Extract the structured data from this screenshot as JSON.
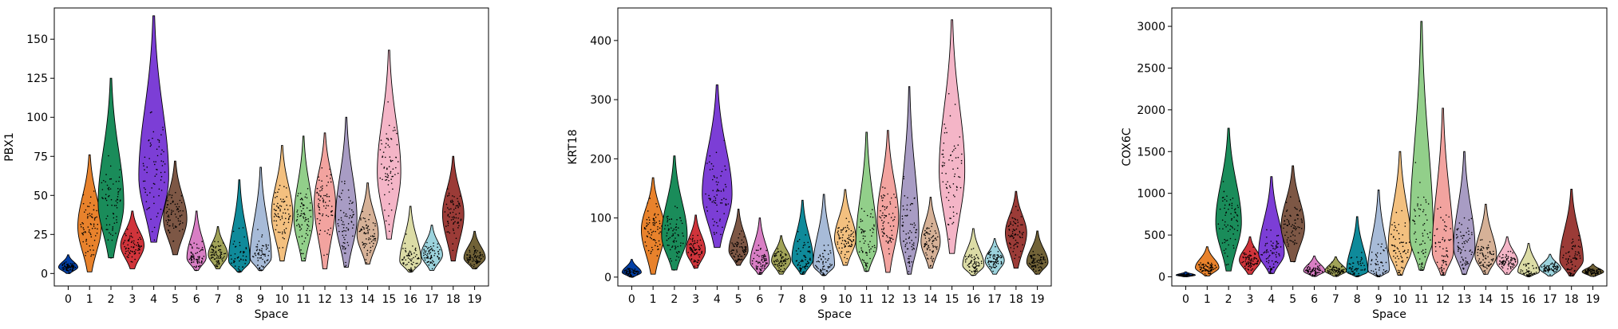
{
  "figure": {
    "palette": [
      "#023fa5",
      "#e8822c",
      "#1a8c5a",
      "#d0343b",
      "#7c3ed6",
      "#7d5745",
      "#d87ec4",
      "#a1a358",
      "#0f8a9a",
      "#a7bbd8",
      "#f3c07f",
      "#92cf8a",
      "#f2a39f",
      "#a89cc4",
      "#d6b197",
      "#f4b5c7",
      "#dcdca6",
      "#9cd3dd",
      "#9b3b37",
      "#716237"
    ]
  },
  "chart_data": [
    {
      "type": "violin",
      "xlabel": "Space",
      "ylabel": "PBX1",
      "categories": [
        "0",
        "1",
        "2",
        "3",
        "4",
        "5",
        "6",
        "7",
        "8",
        "9",
        "10",
        "11",
        "12",
        "13",
        "14",
        "15",
        "16",
        "17",
        "18",
        "19"
      ],
      "ylim": [
        -8,
        170
      ],
      "yticks": [
        0,
        25,
        50,
        75,
        100,
        125,
        150
      ],
      "series": [
        {
          "category": "0",
          "min": 0,
          "max": 12,
          "median": 4,
          "width": 0.45
        },
        {
          "category": "1",
          "min": 1,
          "max": 76,
          "median": 30,
          "width": 0.55
        },
        {
          "category": "2",
          "min": 10,
          "max": 125,
          "median": 45,
          "width": 0.6
        },
        {
          "category": "3",
          "min": 3,
          "max": 40,
          "median": 18,
          "width": 0.55
        },
        {
          "category": "4",
          "min": 20,
          "max": 165,
          "median": 62,
          "width": 0.7
        },
        {
          "category": "5",
          "min": 12,
          "max": 72,
          "median": 35,
          "width": 0.55
        },
        {
          "category": "6",
          "min": 2,
          "max": 40,
          "median": 10,
          "width": 0.45
        },
        {
          "category": "7",
          "min": 3,
          "max": 30,
          "median": 12,
          "width": 0.45
        },
        {
          "category": "8",
          "min": 1,
          "max": 60,
          "median": 8,
          "width": 0.5
        },
        {
          "category": "9",
          "min": 2,
          "max": 68,
          "median": 10,
          "width": 0.5
        },
        {
          "category": "10",
          "min": 8,
          "max": 82,
          "median": 38,
          "width": 0.5
        },
        {
          "category": "11",
          "min": 8,
          "max": 88,
          "median": 35,
          "width": 0.45
        },
        {
          "category": "12",
          "min": 3,
          "max": 90,
          "median": 45,
          "width": 0.5
        },
        {
          "category": "13",
          "min": 4,
          "max": 100,
          "median": 35,
          "width": 0.5
        },
        {
          "category": "14",
          "min": 6,
          "max": 58,
          "median": 25,
          "width": 0.5
        },
        {
          "category": "15",
          "min": 22,
          "max": 143,
          "median": 65,
          "width": 0.55
        },
        {
          "category": "16",
          "min": 1,
          "max": 43,
          "median": 8,
          "width": 0.5
        },
        {
          "category": "17",
          "min": 2,
          "max": 31,
          "median": 12,
          "width": 0.5
        },
        {
          "category": "18",
          "min": 8,
          "max": 75,
          "median": 38,
          "width": 0.5
        },
        {
          "category": "19",
          "min": 3,
          "max": 27,
          "median": 10,
          "width": 0.5
        }
      ]
    },
    {
      "type": "violin",
      "xlabel": "Space",
      "ylabel": "KRT18",
      "categories": [
        "0",
        "1",
        "2",
        "3",
        "4",
        "5",
        "6",
        "7",
        "8",
        "9",
        "10",
        "11",
        "12",
        "13",
        "14",
        "15",
        "16",
        "17",
        "18",
        "19"
      ],
      "ylim": [
        -15,
        455
      ],
      "yticks": [
        0,
        100,
        200,
        300,
        400
      ],
      "series": [
        {
          "category": "0",
          "min": 0,
          "max": 30,
          "median": 8,
          "width": 0.45
        },
        {
          "category": "1",
          "min": 5,
          "max": 168,
          "median": 80,
          "width": 0.55
        },
        {
          "category": "2",
          "min": 12,
          "max": 205,
          "median": 70,
          "width": 0.6
        },
        {
          "category": "3",
          "min": 15,
          "max": 105,
          "median": 45,
          "width": 0.45
        },
        {
          "category": "4",
          "min": 50,
          "max": 325,
          "median": 140,
          "width": 0.7
        },
        {
          "category": "5",
          "min": 20,
          "max": 115,
          "median": 45,
          "width": 0.45
        },
        {
          "category": "6",
          "min": 5,
          "max": 100,
          "median": 25,
          "width": 0.45
        },
        {
          "category": "7",
          "min": 5,
          "max": 70,
          "median": 28,
          "width": 0.45
        },
        {
          "category": "8",
          "min": 5,
          "max": 130,
          "median": 30,
          "width": 0.5
        },
        {
          "category": "9",
          "min": 3,
          "max": 140,
          "median": 20,
          "width": 0.5
        },
        {
          "category": "10",
          "min": 20,
          "max": 148,
          "median": 65,
          "width": 0.5
        },
        {
          "category": "11",
          "min": 10,
          "max": 245,
          "median": 55,
          "width": 0.5
        },
        {
          "category": "12",
          "min": 8,
          "max": 248,
          "median": 100,
          "width": 0.5
        },
        {
          "category": "13",
          "min": 5,
          "max": 322,
          "median": 75,
          "width": 0.45
        },
        {
          "category": "14",
          "min": 15,
          "max": 135,
          "median": 60,
          "width": 0.45
        },
        {
          "category": "15",
          "min": 40,
          "max": 435,
          "median": 180,
          "width": 0.6
        },
        {
          "category": "16",
          "min": 3,
          "max": 82,
          "median": 20,
          "width": 0.5
        },
        {
          "category": "17",
          "min": 5,
          "max": 65,
          "median": 28,
          "width": 0.45
        },
        {
          "category": "18",
          "min": 15,
          "max": 145,
          "median": 75,
          "width": 0.5
        },
        {
          "category": "19",
          "min": 5,
          "max": 78,
          "median": 25,
          "width": 0.5
        }
      ]
    },
    {
      "type": "violin",
      "xlabel": "Space",
      "ylabel": "COX6C",
      "categories": [
        "0",
        "1",
        "2",
        "3",
        "4",
        "5",
        "6",
        "7",
        "8",
        "9",
        "10",
        "11",
        "12",
        "13",
        "14",
        "15",
        "16",
        "17",
        "18",
        "19"
      ],
      "ylim": [
        -110,
        3220
      ],
      "yticks": [
        0,
        500,
        1000,
        1500,
        2000,
        2500,
        3000
      ],
      "series": [
        {
          "category": "0",
          "min": 0,
          "max": 60,
          "median": 20,
          "width": 0.45
        },
        {
          "category": "1",
          "min": 10,
          "max": 360,
          "median": 110,
          "width": 0.55
        },
        {
          "category": "2",
          "min": 70,
          "max": 1780,
          "median": 650,
          "width": 0.6
        },
        {
          "category": "3",
          "min": 30,
          "max": 480,
          "median": 200,
          "width": 0.5
        },
        {
          "category": "4",
          "min": 40,
          "max": 1200,
          "median": 280,
          "width": 0.6
        },
        {
          "category": "5",
          "min": 180,
          "max": 1330,
          "median": 600,
          "width": 0.55
        },
        {
          "category": "6",
          "min": 5,
          "max": 250,
          "median": 70,
          "width": 0.5
        },
        {
          "category": "7",
          "min": 5,
          "max": 240,
          "median": 70,
          "width": 0.5
        },
        {
          "category": "8",
          "min": 5,
          "max": 720,
          "median": 60,
          "width": 0.5
        },
        {
          "category": "9",
          "min": 5,
          "max": 1040,
          "median": 70,
          "width": 0.5
        },
        {
          "category": "10",
          "min": 20,
          "max": 1500,
          "median": 350,
          "width": 0.55
        },
        {
          "category": "11",
          "min": 80,
          "max": 3060,
          "median": 480,
          "width": 0.55
        },
        {
          "category": "12",
          "min": 20,
          "max": 2020,
          "median": 300,
          "width": 0.5
        },
        {
          "category": "13",
          "min": 30,
          "max": 1500,
          "median": 350,
          "width": 0.5
        },
        {
          "category": "14",
          "min": 30,
          "max": 870,
          "median": 250,
          "width": 0.5
        },
        {
          "category": "15",
          "min": 30,
          "max": 480,
          "median": 180,
          "width": 0.5
        },
        {
          "category": "16",
          "min": 5,
          "max": 400,
          "median": 60,
          "width": 0.5
        },
        {
          "category": "17",
          "min": 10,
          "max": 270,
          "median": 100,
          "width": 0.5
        },
        {
          "category": "18",
          "min": 10,
          "max": 1050,
          "median": 200,
          "width": 0.55
        },
        {
          "category": "19",
          "min": 5,
          "max": 150,
          "median": 60,
          "width": 0.5
        }
      ]
    }
  ]
}
